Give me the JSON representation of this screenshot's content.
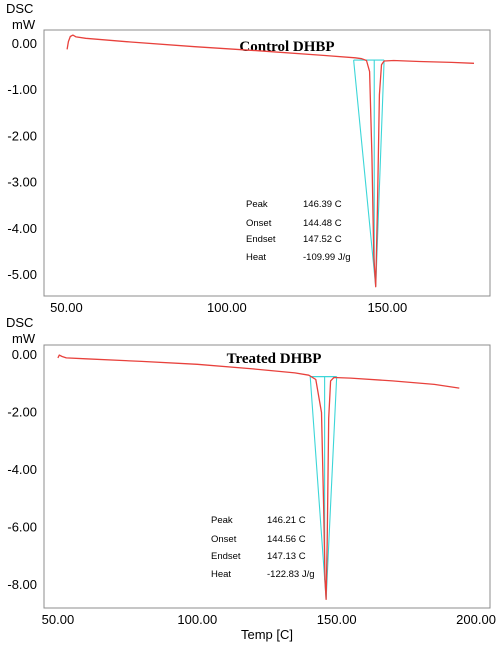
{
  "chart_data": [
    {
      "type": "line",
      "title": "Control DHBP",
      "ylabel": "DSC",
      "yunit": "mW",
      "xlabel": "",
      "xlim": [
        43,
        182
      ],
      "ylim": [
        -5.45,
        0.3
      ],
      "xticks": [
        50,
        100,
        150
      ],
      "xtick_labels": [
        "50.00",
        "100.00",
        "150.00"
      ],
      "yticks": [
        0,
        -1,
        -2,
        -3,
        -4,
        -5
      ],
      "ytick_labels": [
        "0.00",
        "-1.00",
        "-2.00",
        "-3.00",
        "-4.00",
        "-5.00"
      ],
      "grid": false,
      "series": [
        {
          "color": "#e8413c",
          "x": [
            50.2,
            50.6,
            51.2,
            52.0,
            53.0,
            56.0,
            70,
            90,
            110,
            130,
            140,
            142,
            143.5,
            144.48,
            145.2,
            145.8,
            146.39,
            146.9,
            147.52,
            148.2,
            149,
            152,
            160,
            170,
            177
          ],
          "y": [
            -0.12,
            0.05,
            0.16,
            0.19,
            0.15,
            0.12,
            0.04,
            -0.06,
            -0.15,
            -0.25,
            -0.3,
            -0.32,
            -0.36,
            -0.6,
            -2.4,
            -4.6,
            -5.25,
            -3.6,
            -1.1,
            -0.45,
            -0.37,
            -0.36,
            -0.38,
            -0.4,
            -0.42
          ]
        }
      ],
      "baseline": {
        "color": "#3cd6d8",
        "x": [
          139.5,
          149.0
        ],
        "y": [
          -0.35,
          -0.35
        ]
      },
      "stats": [
        {
          "label": "Peak",
          "value": "146.39 C"
        },
        {
          "label": "Onset",
          "value": "144.48 C"
        },
        {
          "label": "Endset",
          "value": "147.52 C"
        },
        {
          "label": "Heat",
          "value": "-109.99 J/g"
        }
      ]
    },
    {
      "type": "line",
      "title": "Treated DHBP",
      "ylabel": "DSC",
      "yunit": "mW",
      "xlabel": "Temp  [C]",
      "xlim": [
        45,
        205
      ],
      "ylim": [
        -8.8,
        0.35
      ],
      "xticks": [
        50,
        100,
        150,
        200
      ],
      "xtick_labels": [
        "50.00",
        "100.00",
        "150.00",
        "200.00"
      ],
      "yticks": [
        0,
        -2,
        -4,
        -6,
        -8
      ],
      "ytick_labels": [
        "0.00",
        "-2.00",
        "-4.00",
        "-6.00",
        "-8.00"
      ],
      "grid": false,
      "series": [
        {
          "color": "#e8413c",
          "x": [
            50.0,
            50.5,
            51.5,
            53,
            60,
            80,
            100,
            120,
            135,
            140,
            142.5,
            144.56,
            145.3,
            145.8,
            146.21,
            146.6,
            147.13,
            147.8,
            149,
            155,
            170,
            185,
            194
          ],
          "y": [
            -0.1,
            0.0,
            -0.05,
            -0.1,
            -0.13,
            -0.22,
            -0.32,
            -0.48,
            -0.62,
            -0.7,
            -0.85,
            -2.0,
            -5.2,
            -7.8,
            -8.5,
            -6.5,
            -2.2,
            -0.9,
            -0.78,
            -0.8,
            -0.9,
            -1.02,
            -1.15
          ]
        }
      ],
      "baseline": {
        "color": "#3cd6d8",
        "x": [
          140.5,
          150.0
        ],
        "y": [
          -0.75,
          -0.75
        ]
      },
      "stats": [
        {
          "label": "Peak",
          "value": "146.21 C"
        },
        {
          "label": "Onset",
          "value": "144.56 C"
        },
        {
          "label": "Endset",
          "value": "147.13 C"
        },
        {
          "label": "Heat",
          "value": "-122.83 J/g"
        }
      ]
    }
  ]
}
